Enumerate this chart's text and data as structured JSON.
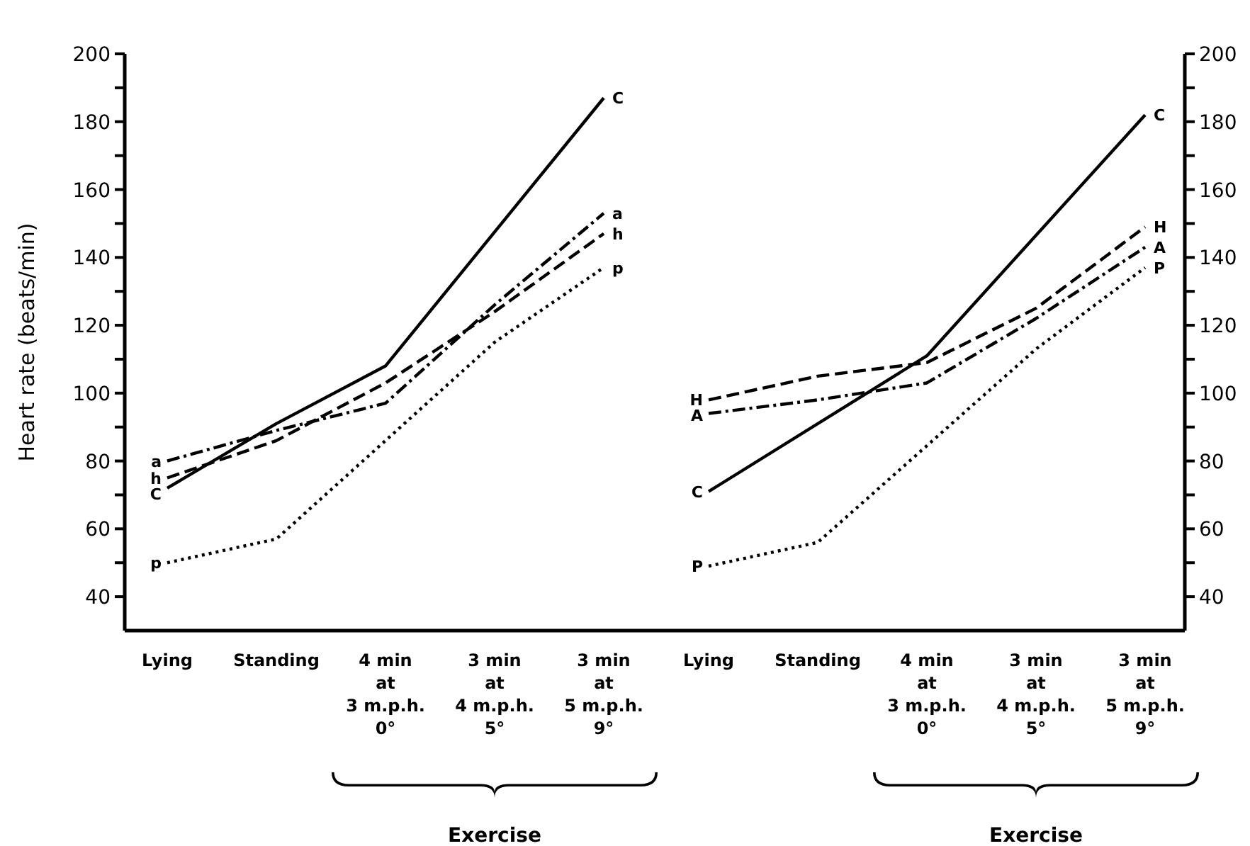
{
  "chart_data": [
    {
      "type": "line",
      "ylabel": "Heart rate (beats/min)",
      "categories": [
        "Lying",
        "Standing",
        "4 min\nat\n3 m.p.h.\n0°",
        "3 min\nat\n4 m.p.h.\n5°",
        "3 min\nat\n5 m.p.h.\n9°"
      ],
      "ylim": [
        30,
        200
      ],
      "yticks": [
        {
          "value": 40,
          "label": "40"
        },
        {
          "value": 50,
          "label": null
        },
        {
          "value": 60,
          "label": "60"
        },
        {
          "value": 70,
          "label": null
        },
        {
          "value": 80,
          "label": "80"
        },
        {
          "value": 90,
          "label": null
        },
        {
          "value": 100,
          "label": "100"
        },
        {
          "value": 110,
          "label": null
        },
        {
          "value": 120,
          "label": "120"
        },
        {
          "value": 130,
          "label": null
        },
        {
          "value": 140,
          "label": "140"
        },
        {
          "value": 150,
          "label": null
        },
        {
          "value": 160,
          "label": "160"
        },
        {
          "value": 170,
          "label": null
        },
        {
          "value": 180,
          "label": "180"
        },
        {
          "value": 190,
          "label": null
        },
        {
          "value": 200,
          "label": "200"
        }
      ],
      "annotations": [
        "Exercise"
      ],
      "series": [
        {
          "name": "C",
          "color": "#000000",
          "line_style": "solid",
          "values": [
            72,
            91,
            108,
            null,
            187
          ]
        },
        {
          "name": "a",
          "color": "#000000",
          "line_style": "dashdot",
          "values": [
            80,
            89,
            97,
            126,
            153
          ]
        },
        {
          "name": "h",
          "color": "#000000",
          "line_style": "dashed",
          "values": [
            75,
            86,
            103,
            124,
            147
          ]
        },
        {
          "name": "p",
          "color": "#000000",
          "line_style": "dotted",
          "values": [
            50,
            57,
            null,
            115,
            137
          ]
        }
      ]
    },
    {
      "type": "line",
      "categories": [
        "Lying",
        "Standing",
        "4 min\nat\n3 m.p.h.\n0°",
        "3 min\nat\n4 m.p.h.\n5°",
        "3 min\nat\n5 m.p.h.\n9°"
      ],
      "y2lim": [
        30,
        200
      ],
      "y2ticks": [
        {
          "value": 40,
          "label": "40"
        },
        {
          "value": 50,
          "label": null
        },
        {
          "value": 60,
          "label": "60"
        },
        {
          "value": 70,
          "label": null
        },
        {
          "value": 80,
          "label": "80"
        },
        {
          "value": 90,
          "label": null
        },
        {
          "value": 100,
          "label": "100"
        },
        {
          "value": 110,
          "label": null
        },
        {
          "value": 120,
          "label": "120"
        },
        {
          "value": 130,
          "label": null
        },
        {
          "value": 140,
          "label": "140"
        },
        {
          "value": 150,
          "label": null
        },
        {
          "value": 160,
          "label": "160"
        },
        {
          "value": 170,
          "label": null
        },
        {
          "value": 180,
          "label": "180"
        },
        {
          "value": 190,
          "label": null
        },
        {
          "value": 200,
          "label": "200"
        }
      ],
      "annotations": [
        "Exercise"
      ],
      "series": [
        {
          "name": "C",
          "color": "#000000",
          "line_style": "solid",
          "axis": "y2",
          "values": [
            71,
            null,
            111,
            null,
            182
          ]
        },
        {
          "name": "H",
          "color": "#000000",
          "line_style": "dashed",
          "axis": "y2",
          "values": [
            98,
            105,
            109,
            125,
            149
          ]
        },
        {
          "name": "A",
          "color": "#000000",
          "line_style": "dashdot",
          "axis": "y2",
          "values": [
            94,
            98,
            103,
            122,
            143
          ]
        },
        {
          "name": "P",
          "color": "#000000",
          "line_style": "dotted",
          "axis": "y2",
          "values": [
            49,
            56,
            null,
            113,
            137
          ]
        }
      ]
    }
  ]
}
